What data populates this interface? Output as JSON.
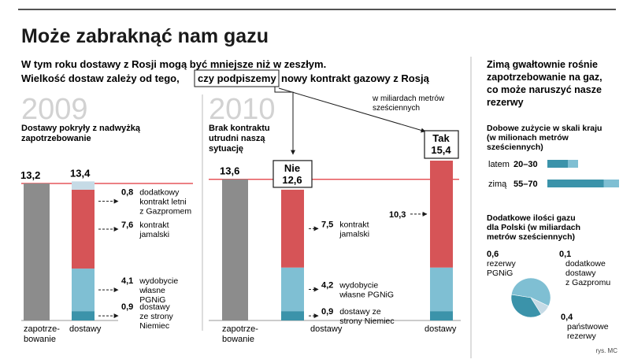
{
  "title": "Może zabraknąć nam gazu",
  "subtitle": {
    "line1": "W tym roku dostawy z Rosji mogą być mniejsze niż w zeszłym.",
    "line2_prefix": "Wielkość dostaw zależy od tego,",
    "line2_highlight": "czy podpiszemy",
    "line2_suffix": "nowy kontrakt gazowy z Rosją"
  },
  "unit_note": [
    "w miliardach metrów",
    "sześciennych"
  ],
  "credit": "rys. MC",
  "colors": {
    "demand": "#8c8c8c",
    "dodatkowy": "#c6dbe6",
    "jamalski": "#d65457",
    "wydobycie": "#7fbfd3",
    "niemcy": "#3b93aa",
    "redline": "#e0353a",
    "ruler": "#999999",
    "pie_dark": "#3b93aa",
    "pie_mid": "#7fbfd3",
    "pie_light": "#c6dbe6"
  },
  "chart_data": [
    {
      "type": "bar",
      "year": "2009",
      "caption": [
        "Dostawy pokryły z nadwyżką",
        "zapotrzebowanie"
      ],
      "ylim": [
        0,
        15.4
      ],
      "bars": [
        {
          "label": [
            "zapotrze-",
            "bowanie"
          ],
          "total": "13,2",
          "total_value": 13.2,
          "segments": [
            {
              "key": "demand",
              "value": 13.2
            }
          ]
        },
        {
          "label": [
            "dostawy"
          ],
          "total": "13,4",
          "total_value": 13.4,
          "segments": [
            {
              "key": "niemcy",
              "value": 0.9,
              "label_value": "0,9",
              "label_text": [
                "dostawy",
                "ze strony",
                "Niemiec"
              ]
            },
            {
              "key": "wydobycie",
              "value": 4.1,
              "label_value": "4,1",
              "label_text": [
                "wydobycie",
                "własne",
                "PGNiG"
              ]
            },
            {
              "key": "jamalski",
              "value": 7.6,
              "label_value": "7,6",
              "label_text": [
                "kontrakt",
                "jamalski"
              ]
            },
            {
              "key": "dodatkowy",
              "value": 0.8,
              "label_value": "0,8",
              "label_text": [
                "dodatkowy",
                "kontrakt letni",
                "z Gazpromem"
              ]
            }
          ]
        }
      ]
    },
    {
      "type": "bar",
      "year": "2010",
      "caption": [
        "Brak kontraktu",
        "utrudni naszą",
        "sytuację"
      ],
      "ylim": [
        0,
        15.4
      ],
      "bars": [
        {
          "label": [
            "zapotrze-",
            "bowanie"
          ],
          "total": "13,6",
          "total_value": 13.6,
          "segments": [
            {
              "key": "demand",
              "value": 13.6
            }
          ]
        },
        {
          "label": [
            "dostawy"
          ],
          "scenario": "Nie",
          "total": "12,6",
          "total_value": 12.6,
          "segments": [
            {
              "key": "niemcy",
              "value": 0.9,
              "label_value": "0,9",
              "label_text": [
                "dostawy ze",
                "strony Niemiec"
              ]
            },
            {
              "key": "wydobycie",
              "value": 4.2,
              "label_value": "4,2",
              "label_text": [
                "wydobycie",
                "własne PGNiG"
              ]
            },
            {
              "key": "jamalski",
              "value": 7.5,
              "label_value": "7,5",
              "label_text": [
                "kontrakt",
                "jamalski"
              ]
            }
          ]
        },
        {
          "label": [
            "dostawy"
          ],
          "scenario": "Tak",
          "total": "15,4",
          "total_value": 15.4,
          "segments": [
            {
              "key": "niemcy",
              "value": 0.9
            },
            {
              "key": "wydobycie",
              "value": 4.2
            },
            {
              "key": "jamalski",
              "value": 10.3,
              "label_value": "10,3"
            }
          ]
        }
      ]
    },
    {
      "type": "bar",
      "title": [
        "Dobowe zużycie w skali kraju",
        "(w milionach metrów",
        "sześciennych)"
      ],
      "xlim": [
        0,
        70
      ],
      "rows": [
        {
          "label": "latem",
          "range": "20–30",
          "min": 20,
          "max": 30
        },
        {
          "label": "zimą",
          "range": "55–70",
          "min": 55,
          "max": 70
        }
      ]
    },
    {
      "type": "pie",
      "title": [
        "Dodatkowe ilości gazu",
        "dla Polski (w miliardach",
        "metrów sześciennych)"
      ],
      "slices": [
        {
          "value": 0.6,
          "label_value": "0,6",
          "label_text": [
            "rezerwy",
            "PGNiG"
          ],
          "color_key": "pie_mid"
        },
        {
          "value": 0.1,
          "label_value": "0,1",
          "label_text": [
            "dodatkowe",
            "dostawy",
            "z Gazpromu"
          ],
          "color_key": "pie_light"
        },
        {
          "value": 0.4,
          "label_value": "0,4",
          "label_text": [
            "państwowe",
            "rezerwy"
          ],
          "color_key": "pie_dark"
        }
      ]
    }
  ],
  "sidebar": {
    "heading": [
      "Zimą gwałtownie rośnie",
      "zapotrzebowanie na gaz,",
      "co może naruszyć nasze",
      "rezerwy"
    ]
  }
}
